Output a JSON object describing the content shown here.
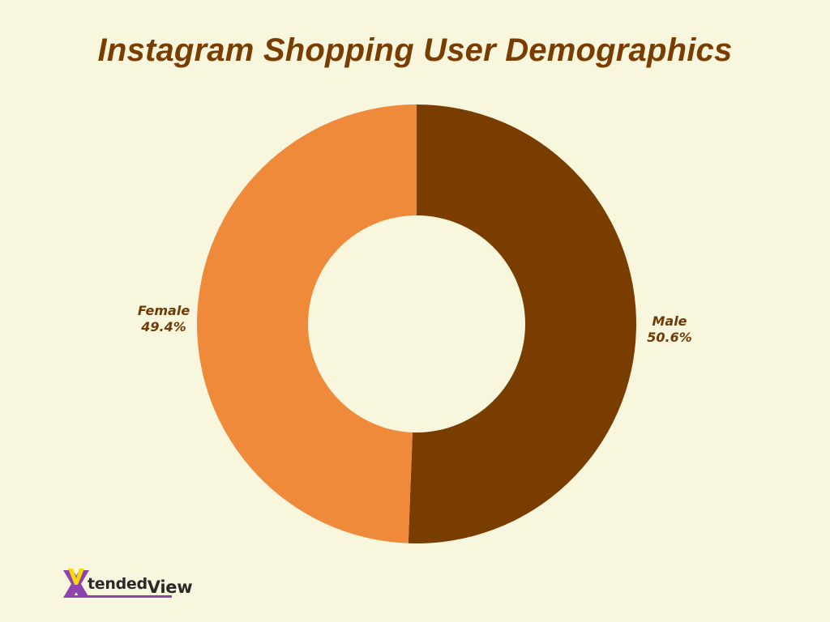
{
  "title": "Instagram Shopping User Demographics",
  "chart_data": {
    "type": "pie",
    "subtype": "donut",
    "title": "Instagram Shopping User Demographics",
    "categories": [
      "Male",
      "Female"
    ],
    "values": [
      50.6,
      49.4
    ],
    "unit": "%",
    "colors": [
      "#7a3d00",
      "#ef8a3a"
    ],
    "labels": [
      {
        "name": "Female",
        "value": "49.4%"
      },
      {
        "name": "Male",
        "value": "50.6%"
      }
    ],
    "start_angle_deg": 0,
    "direction": "clockwise",
    "legend": "none (direct labels)"
  },
  "labels": {
    "female": {
      "name": "Female",
      "value": "49.4%"
    },
    "male": {
      "name": "Male",
      "value": "50.6%"
    }
  },
  "logo": {
    "part1": "X",
    "part2": "tended",
    "part3": "View"
  },
  "colors": {
    "background": "#f9f6de",
    "title": "#7a3d00",
    "male": "#7a3d00",
    "female": "#ef8a3a",
    "label": "#6e3a06",
    "logo_purple": "#8e44ad",
    "logo_yellow": "#f5d90a"
  }
}
